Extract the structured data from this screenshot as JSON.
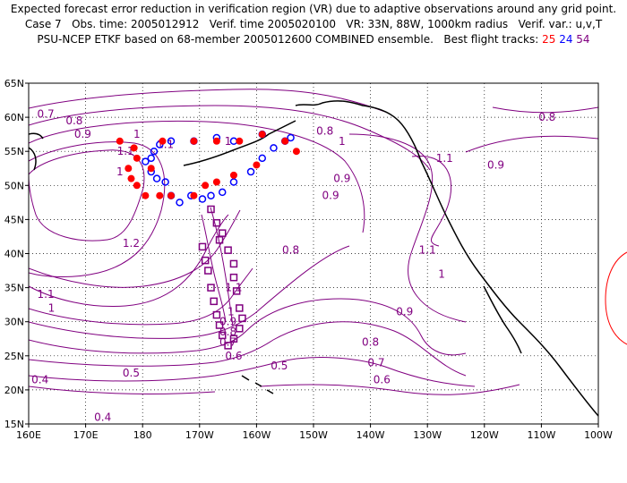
{
  "header": {
    "line1": "Expected forecast error reduction in verification region (VR) due to adaptive observations around any grid point.",
    "line2": "Case 7   Obs. time: 2005012912   Verif. time 2005020100   VR: 33N, 88W, 1000km radius   Verif. var.: u,v,T",
    "line3_prefix": "PSU-NCEP ETKF based on 68-member 2005012600 COMBINED ensemble.   Best flight tracks: ",
    "tracks": [
      {
        "label": "25",
        "color": "#ff0000"
      },
      {
        "label": "24",
        "color": "#0000ff"
      },
      {
        "label": "54",
        "color": "#800080"
      }
    ]
  },
  "map": {
    "lon_labels": [
      "160E",
      "170E",
      "180",
      "170W",
      "160W",
      "150W",
      "140W",
      "130W",
      "120W",
      "110W",
      "100W"
    ],
    "lat_labels": [
      "15N",
      "20N",
      "25N",
      "30N",
      "35N",
      "40N",
      "45N",
      "50N",
      "55N",
      "60N",
      "65N"
    ],
    "contour_color": "#800080",
    "coast_color": "#000000",
    "contour_labels": [
      {
        "text": "0.7",
        "lon": 163,
        "lat": 60.5
      },
      {
        "text": "0.8",
        "lon": 168,
        "lat": 59.5
      },
      {
        "text": "0.9",
        "lon": 169.5,
        "lat": 57.5
      },
      {
        "text": "0.8",
        "lon": -148,
        "lat": 58
      },
      {
        "text": "0.8",
        "lon": -109,
        "lat": 60
      },
      {
        "text": "1",
        "lon": -145,
        "lat": 56.5
      },
      {
        "text": "1.1",
        "lon": -127,
        "lat": 54
      },
      {
        "text": "0.9",
        "lon": -118,
        "lat": 53
      },
      {
        "text": "0.9",
        "lon": -145,
        "lat": 51
      },
      {
        "text": "0.9",
        "lon": -147,
        "lat": 48.5
      },
      {
        "text": "1.1",
        "lon": -130,
        "lat": 40.5
      },
      {
        "text": "1",
        "lon": -127.5,
        "lat": 37
      },
      {
        "text": "0.8",
        "lon": -154,
        "lat": 40.5
      },
      {
        "text": "0.9",
        "lon": -134,
        "lat": 31.5
      },
      {
        "text": "0.8",
        "lon": -140,
        "lat": 27
      },
      {
        "text": "0.7",
        "lon": -139,
        "lat": 24
      },
      {
        "text": "0.6",
        "lon": -138,
        "lat": 21.5
      },
      {
        "text": "0.5",
        "lon": -156,
        "lat": 23.5
      },
      {
        "text": "0.5",
        "lon": 178,
        "lat": 22.5
      },
      {
        "text": "0.4",
        "lon": 162,
        "lat": 21.5
      },
      {
        "text": "0.4",
        "lon": 173,
        "lat": 16
      },
      {
        "text": "0.6",
        "lon": -164,
        "lat": 25
      },
      {
        "text": "0.7",
        "lon": -165,
        "lat": 27
      },
      {
        "text": "0.8",
        "lon": -165,
        "lat": 28.5
      },
      {
        "text": "0.9",
        "lon": -165,
        "lat": 30
      },
      {
        "text": "1",
        "lon": -164.5,
        "lat": 31.5
      },
      {
        "text": "1.1",
        "lon": -164,
        "lat": 35
      },
      {
        "text": "1.2",
        "lon": 178,
        "lat": 41.5
      },
      {
        "text": "1.1",
        "lon": 163,
        "lat": 34
      },
      {
        "text": "1",
        "lon": 164,
        "lat": 32
      },
      {
        "text": "1",
        "lon": -165,
        "lat": 56.5
      },
      {
        "text": "1.1",
        "lon": -176,
        "lat": 56
      },
      {
        "text": "1",
        "lon": 179,
        "lat": 57.5
      },
      {
        "text": "1.1",
        "lon": 177,
        "lat": 55
      },
      {
        "text": "1",
        "lon": 176,
        "lat": 52
      }
    ],
    "track_red": [
      [
        181.5,
        52.5
      ],
      [
        179,
        54
      ],
      [
        178.5,
        55.5
      ],
      [
        176,
        56.5
      ],
      [
        183.5,
        56.5
      ],
      [
        189,
        56.5
      ],
      [
        193,
        56.5
      ],
      [
        197,
        56.5
      ],
      [
        201,
        57.5
      ],
      [
        205,
        56.5
      ],
      [
        207,
        55
      ],
      [
        200,
        53
      ],
      [
        196,
        51.5
      ],
      [
        193,
        50.5
      ],
      [
        191,
        50
      ],
      [
        189,
        48.5
      ],
      [
        185,
        48.5
      ],
      [
        183,
        48.5
      ],
      [
        180.5,
        48.5
      ],
      [
        179,
        50
      ],
      [
        178,
        51
      ],
      [
        177.5,
        52.5
      ]
    ],
    "track_blue": [
      [
        180.5,
        53.5
      ],
      [
        181.5,
        52
      ],
      [
        182.5,
        51
      ],
      [
        184,
        50.5
      ],
      [
        185,
        48.5
      ],
      [
        186.5,
        47.5
      ],
      [
        188.5,
        48.5
      ],
      [
        190.5,
        48
      ],
      [
        192,
        48.5
      ],
      [
        194,
        49
      ],
      [
        196,
        50.5
      ],
      [
        199,
        52
      ],
      [
        201,
        54
      ],
      [
        203,
        55.5
      ],
      [
        205,
        56.5
      ],
      [
        206,
        57
      ],
      [
        201,
        57.5
      ],
      [
        196,
        56.5
      ],
      [
        193,
        57
      ],
      [
        189,
        56.5
      ],
      [
        185,
        56.5
      ],
      [
        183,
        56
      ],
      [
        182,
        55
      ],
      [
        181.5,
        54
      ]
    ],
    "track_purple": [
      [
        192,
        46.5
      ],
      [
        193,
        44.5
      ],
      [
        194,
        43
      ],
      [
        193.5,
        42
      ],
      [
        195,
        40.5
      ],
      [
        196,
        38.5
      ],
      [
        196,
        36.5
      ],
      [
        196.5,
        34.5
      ],
      [
        197,
        32
      ],
      [
        197.5,
        30.5
      ],
      [
        197,
        29
      ],
      [
        196,
        27.5
      ],
      [
        195,
        26.5
      ],
      [
        194,
        28
      ],
      [
        193.5,
        29.5
      ],
      [
        193,
        31
      ],
      [
        192.5,
        33
      ],
      [
        192,
        35
      ],
      [
        191.5,
        37.5
      ],
      [
        191,
        39
      ],
      [
        190.5,
        41
      ]
    ]
  }
}
